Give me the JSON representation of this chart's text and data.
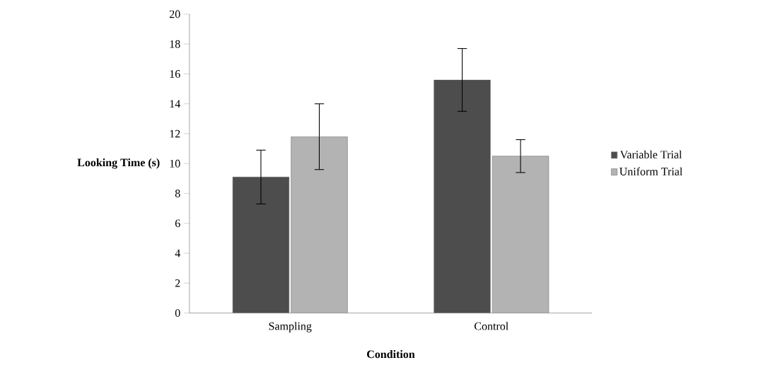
{
  "chart_data": {
    "type": "bar",
    "xlabel": "Condition",
    "ylabel": "Looking Time (s)",
    "categories": [
      "Sampling",
      "Control"
    ],
    "series": [
      {
        "name": "Variable Trial",
        "color": "#4d4d4d",
        "values": [
          9.1,
          15.6
        ],
        "errors": [
          1.8,
          2.1
        ]
      },
      {
        "name": "Uniform Trial",
        "color": "#b3b3b3",
        "values": [
          11.8,
          10.5
        ],
        "errors": [
          2.2,
          1.1
        ]
      }
    ],
    "ylim": [
      0,
      20
    ],
    "yticks": [
      0,
      2,
      4,
      6,
      8,
      10,
      12,
      14,
      16,
      18,
      20
    ],
    "grid": false,
    "legend": "right"
  }
}
